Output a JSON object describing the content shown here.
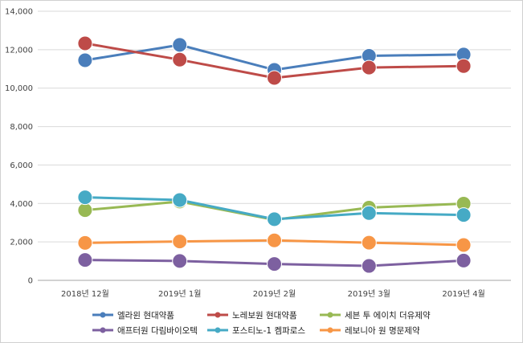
{
  "chart_data": {
    "type": "line",
    "title": "",
    "xlabel": "",
    "ylabel": "",
    "categories": [
      "2018년 12월",
      "2019년 1월",
      "2019년 2월",
      "2019년 3월",
      "2019년 4월"
    ],
    "ylim": [
      0,
      14000
    ],
    "ytick_step": 2000,
    "y_tick_labels": [
      "0",
      "2,000",
      "4,000",
      "6,000",
      "8,000",
      "10,000",
      "12,000",
      "14,000"
    ],
    "grid": true,
    "legend_position": "bottom",
    "series": [
      {
        "name": "엘라윈 현대약품",
        "color": "#4a7ebb",
        "values": [
          11450,
          12250,
          10950,
          11680,
          11750
        ]
      },
      {
        "name": "노레보원 현대약품",
        "color": "#be4b48",
        "values": [
          12330,
          11480,
          10530,
          11070,
          11150
        ]
      },
      {
        "name": "세븐 투 에이치 더유제약",
        "color": "#98b954",
        "values": [
          3650,
          4100,
          3150,
          3780,
          3990
        ]
      },
      {
        "name": "애프터원 다림바이오텍",
        "color": "#7d60a0",
        "values": [
          1060,
          1010,
          850,
          750,
          1030
        ]
      },
      {
        "name": "포스티노-1 켐파로스",
        "color": "#46aac5",
        "values": [
          4320,
          4180,
          3180,
          3500,
          3400
        ]
      },
      {
        "name": "레보니아 원 명문제약",
        "color": "#f79646",
        "values": [
          1950,
          2020,
          2080,
          1960,
          1840
        ]
      }
    ]
  }
}
